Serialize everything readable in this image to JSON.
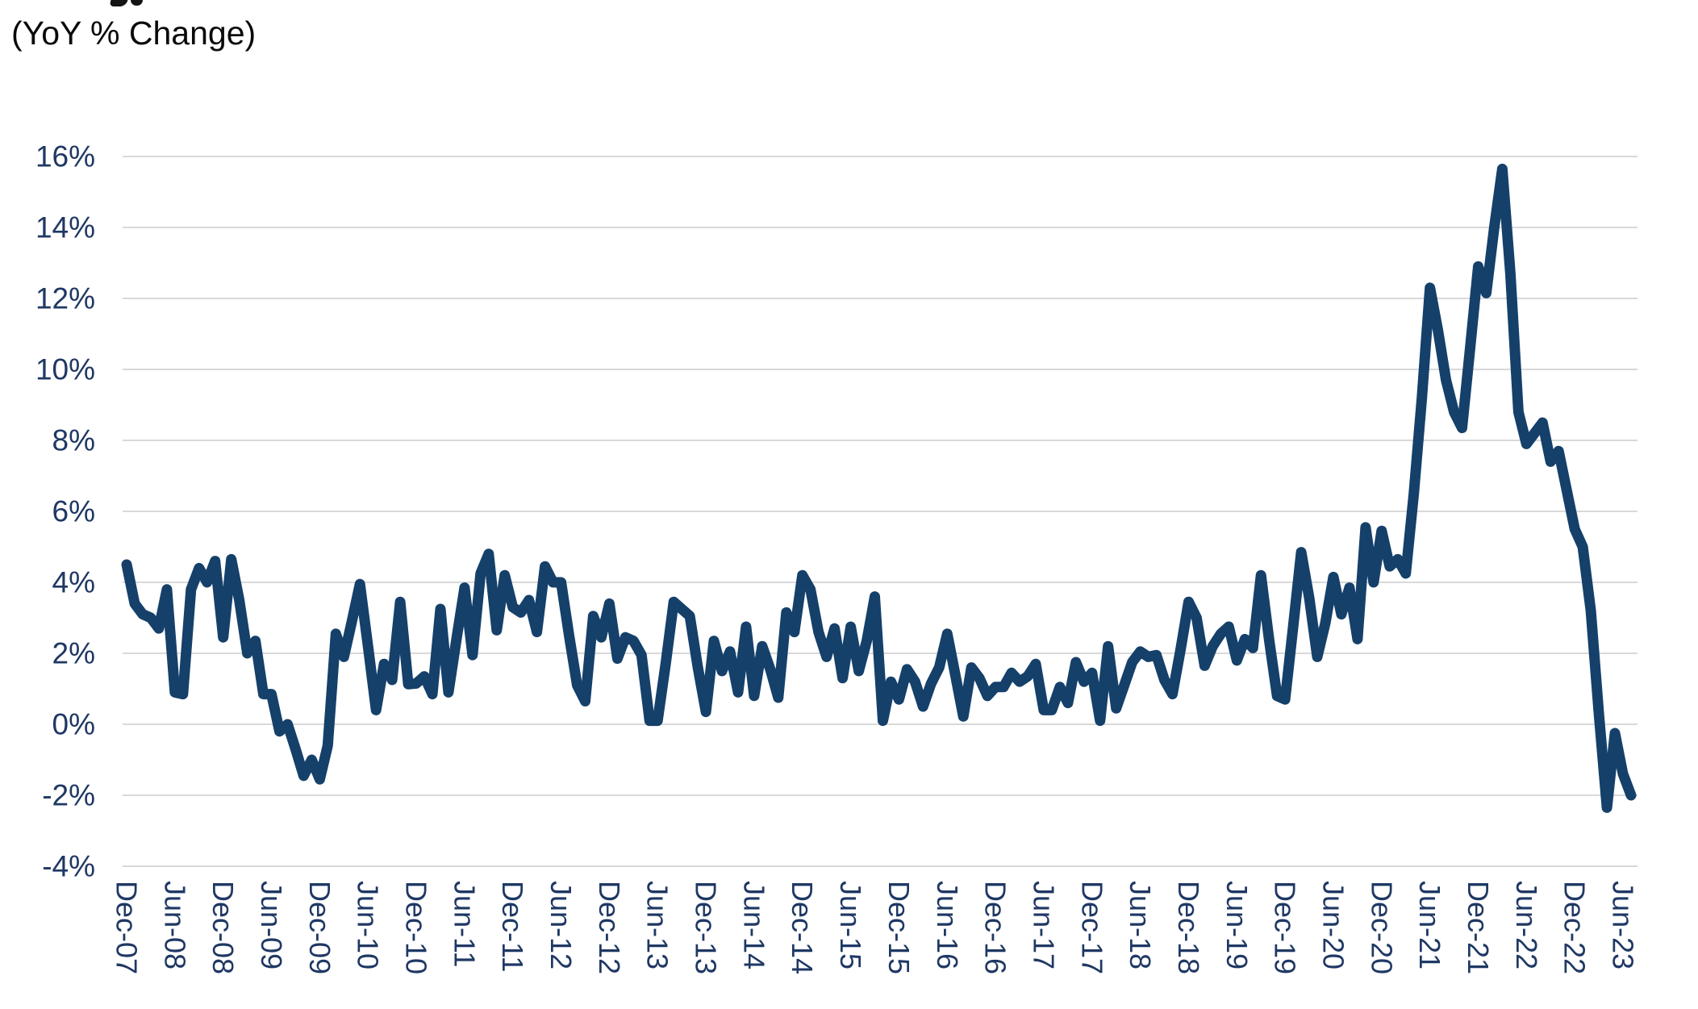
{
  "chart_data": {
    "type": "line",
    "title": "(YoY % Change)",
    "x_frequency": "monthly",
    "x_first_point": "Dec-07",
    "x_ticks_every_n_points": 6,
    "x_tick_labels": [
      "Dec-07",
      "Jun-08",
      "Dec-08",
      "Jun-09",
      "Dec-09",
      "Jun-10",
      "Dec-10",
      "Jun-11",
      "Dec-11",
      "Jun-12",
      "Dec-12",
      "Jun-13",
      "Dec-13",
      "Jun-14",
      "Dec-14",
      "Jun-15",
      "Dec-15",
      "Jun-16",
      "Dec-16",
      "Jun-17",
      "Dec-17",
      "Jun-18",
      "Dec-18",
      "Jun-19",
      "Dec-19",
      "Jun-20",
      "Dec-20",
      "Jun-21",
      "Dec-21",
      "Jun-22",
      "Dec-22",
      "Jun-23"
    ],
    "y_tick_labels": [
      "16%",
      "14%",
      "12%",
      "10%",
      "8%",
      "6%",
      "4%",
      "2%",
      "0%",
      "-2%",
      "-4%"
    ],
    "y_tick_values": [
      16,
      14,
      12,
      10,
      8,
      6,
      4,
      2,
      0,
      -2,
      -4
    ],
    "ylim": [
      -4,
      16
    ],
    "grid": true,
    "legend": "none",
    "series": [
      {
        "name": "YoY % Change",
        "values": [
          4.5,
          3.4,
          3.1,
          3.0,
          2.7,
          3.8,
          0.9,
          0.85,
          3.8,
          4.4,
          4.0,
          4.6,
          2.45,
          4.65,
          3.5,
          2.0,
          2.35,
          0.85,
          0.85,
          -0.2,
          0.0,
          -0.7,
          -1.45,
          -1.0,
          -1.55,
          -0.6,
          2.55,
          1.9,
          2.9,
          3.95,
          2.2,
          0.4,
          1.7,
          1.25,
          3.45,
          1.13,
          1.15,
          1.35,
          0.85,
          3.25,
          0.9,
          2.4,
          3.85,
          1.95,
          4.25,
          4.8,
          2.65,
          4.2,
          3.3,
          3.15,
          3.5,
          2.6,
          4.45,
          4.0,
          4.0,
          2.5,
          1.1,
          0.65,
          3.05,
          2.45,
          3.4,
          1.85,
          2.45,
          2.35,
          1.95,
          0.1,
          0.1,
          1.7,
          3.45,
          3.25,
          3.05,
          1.6,
          0.35,
          2.35,
          1.5,
          2.05,
          0.9,
          2.75,
          0.8,
          2.2,
          1.55,
          0.75,
          3.15,
          2.6,
          4.2,
          3.8,
          2.6,
          1.9,
          2.7,
          1.3,
          2.75,
          1.5,
          2.35,
          3.6,
          0.1,
          1.2,
          0.7,
          1.55,
          1.2,
          0.5,
          1.15,
          1.6,
          2.55,
          1.4,
          0.22,
          1.6,
          1.3,
          0.8,
          1.05,
          1.05,
          1.45,
          1.2,
          1.35,
          1.7,
          0.4,
          0.4,
          1.05,
          0.6,
          1.75,
          1.2,
          1.45,
          0.1,
          2.2,
          0.45,
          1.1,
          1.75,
          2.05,
          1.9,
          1.95,
          1.25,
          0.85,
          2.1,
          3.45,
          3.0,
          1.65,
          2.2,
          2.55,
          2.75,
          1.8,
          2.4,
          2.15,
          4.2,
          2.4,
          0.8,
          0.7,
          2.75,
          4.85,
          3.55,
          1.9,
          2.85,
          4.15,
          3.1,
          3.85,
          2.4,
          5.55,
          4.0,
          5.45,
          4.45,
          4.65,
          4.25,
          6.5,
          9.2,
          12.3,
          11.1,
          9.7,
          8.8,
          8.35,
          10.6,
          12.9,
          12.15,
          14.0,
          15.65,
          12.7,
          8.8,
          7.9,
          8.2,
          8.5,
          7.4,
          7.7,
          6.6,
          5.5,
          5.0,
          3.2,
          0.3,
          -2.35,
          -0.25,
          -1.4,
          -2.0
        ]
      }
    ],
    "style": {
      "line_color": "#15406a",
      "axis_label_color": "#1f3864",
      "gridline_color": "#d9d9d9",
      "background": "#ffffff"
    }
  }
}
